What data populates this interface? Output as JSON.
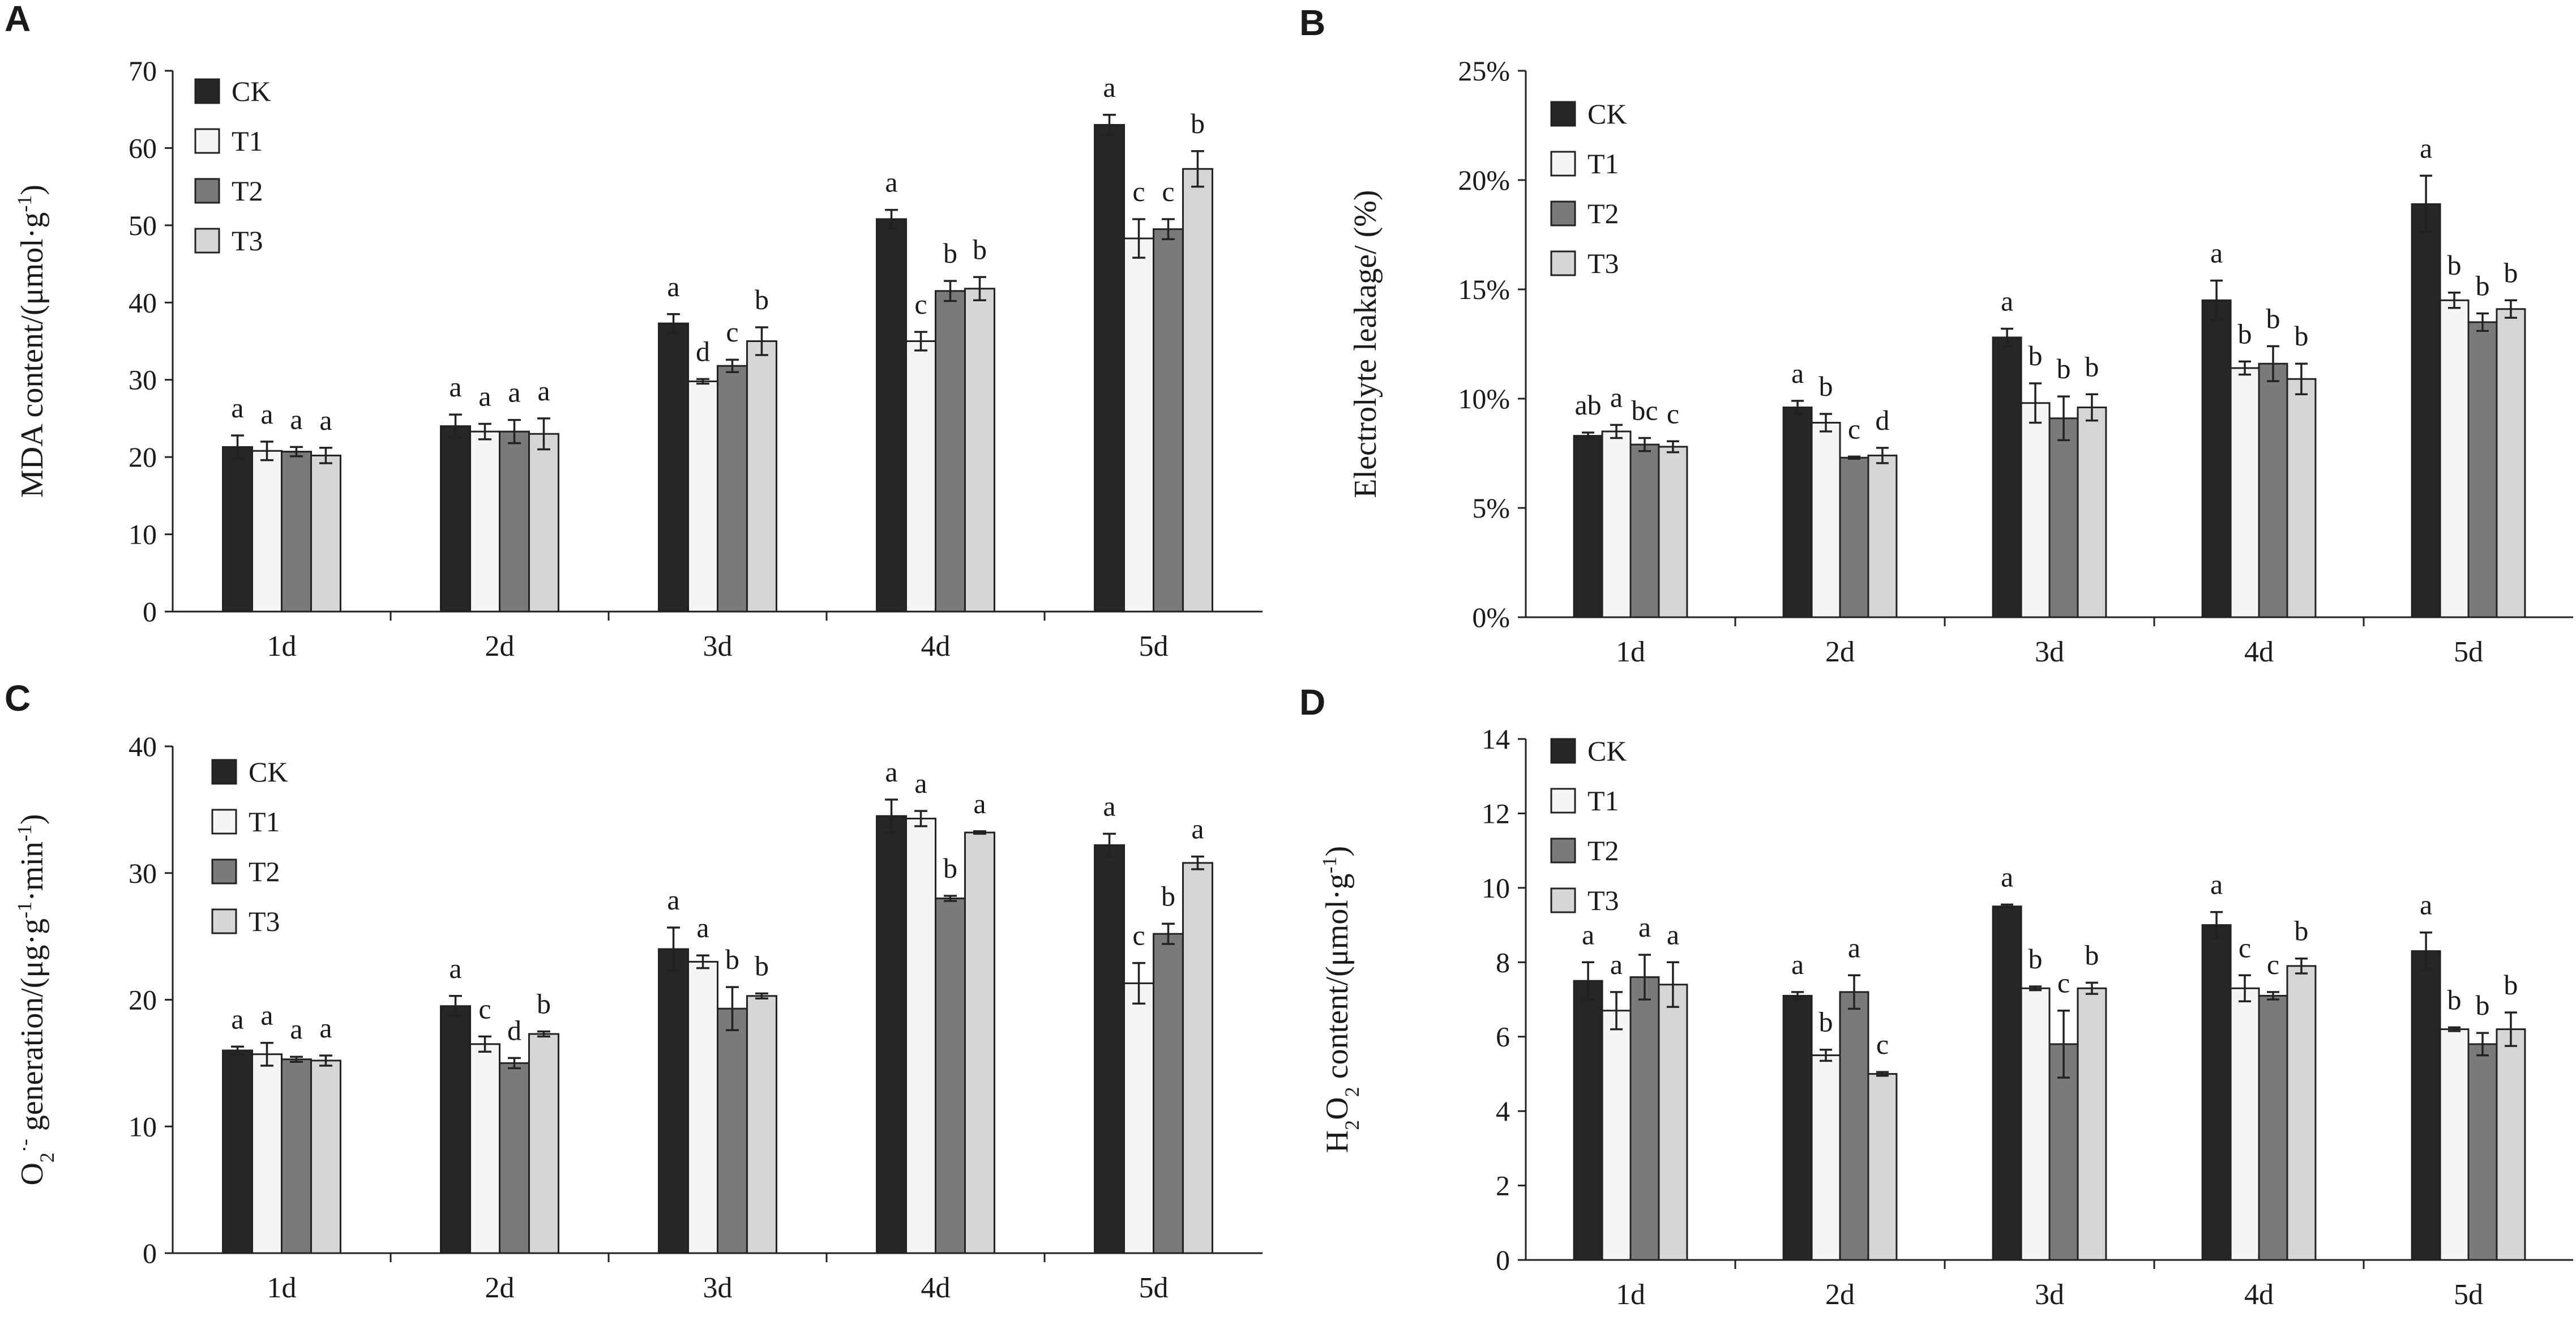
{
  "figure": {
    "series_names": [
      "CK",
      "T1",
      "T2",
      "T3"
    ],
    "series_colors": [
      "#262626",
      "#f5f5f5",
      "#7a7a7a",
      "#d6d6d6"
    ]
  },
  "chart_data": [
    {
      "type": "bar",
      "panel": "A",
      "ylabel": "MDA content/(μmol·g⁻¹)",
      "ylabel_parts": [
        [
          "MDA content/(μmol·g",
          ""
        ],
        [
          "-1",
          "sup"
        ],
        [
          ")",
          ""
        ]
      ],
      "ylim": [
        0,
        70
      ],
      "yticks": [
        0,
        10,
        20,
        30,
        40,
        50,
        60,
        70
      ],
      "ytick_labels": [
        "0",
        "10",
        "20",
        "30",
        "40",
        "50",
        "60",
        "70"
      ],
      "categories": [
        "1d",
        "2d",
        "3d",
        "4d",
        "5d"
      ],
      "legend": "top-left",
      "series": [
        {
          "name": "CK",
          "values": [
            21.3,
            24.0,
            37.3,
            50.8,
            63.0
          ],
          "errors": [
            1.5,
            1.5,
            1.2,
            1.2,
            1.3
          ],
          "letters": [
            "a",
            "a",
            "a",
            "a",
            "a"
          ]
        },
        {
          "name": "T1",
          "values": [
            20.8,
            23.3,
            29.8,
            35.0,
            48.3
          ],
          "errors": [
            1.2,
            1.0,
            0.3,
            1.2,
            2.5
          ],
          "letters": [
            "a",
            "a",
            "d",
            "c",
            "c"
          ]
        },
        {
          "name": "T2",
          "values": [
            20.7,
            23.3,
            31.8,
            41.5,
            49.5
          ],
          "errors": [
            0.6,
            1.5,
            0.8,
            1.3,
            1.3
          ],
          "letters": [
            "a",
            "a",
            "c",
            "b",
            "c"
          ]
        },
        {
          "name": "T3",
          "values": [
            20.2,
            23.0,
            35.0,
            41.8,
            57.3
          ],
          "errors": [
            1.0,
            2.0,
            1.8,
            1.5,
            2.3
          ],
          "letters": [
            "a",
            "a",
            "b",
            "b",
            "b"
          ]
        }
      ]
    },
    {
      "type": "bar",
      "panel": "B",
      "ylabel": "Electrolyte leakage/ (%)",
      "ylabel_parts": [
        [
          "Electrolyte leakage/ (%)",
          ""
        ]
      ],
      "ylim": [
        0,
        25
      ],
      "yticks": [
        0,
        5,
        10,
        15,
        20,
        25
      ],
      "ytick_labels": [
        "0%",
        "5%",
        "10%",
        "15%",
        "20%",
        "25%"
      ],
      "categories": [
        "1d",
        "2d",
        "3d",
        "4d",
        "5d"
      ],
      "legend": "top-left",
      "series": [
        {
          "name": "CK",
          "values": [
            8.3,
            9.6,
            12.8,
            14.5,
            18.9
          ],
          "errors": [
            0.15,
            0.3,
            0.4,
            0.9,
            1.3
          ],
          "letters": [
            "ab",
            "a",
            "a",
            "a",
            "a"
          ]
        },
        {
          "name": "T1",
          "values": [
            8.5,
            8.9,
            9.8,
            11.4,
            14.5
          ],
          "errors": [
            0.3,
            0.4,
            0.9,
            0.3,
            0.35
          ],
          "letters": [
            "a",
            "b",
            "b",
            "b",
            "b"
          ]
        },
        {
          "name": "T2",
          "values": [
            7.9,
            7.3,
            9.1,
            11.6,
            13.5
          ],
          "errors": [
            0.3,
            0.05,
            1.0,
            0.8,
            0.4
          ],
          "letters": [
            "bc",
            "c",
            "b",
            "b",
            "b"
          ]
        },
        {
          "name": "T3",
          "values": [
            7.8,
            7.4,
            9.6,
            10.9,
            14.1
          ],
          "errors": [
            0.25,
            0.35,
            0.6,
            0.7,
            0.4
          ],
          "letters": [
            "c",
            "d",
            "b",
            "b",
            "b"
          ]
        }
      ]
    },
    {
      "type": "bar",
      "panel": "C",
      "ylabel": "O₂⁻ generation/(μg·g⁻¹·min⁻¹)",
      "ylabel_parts": [
        [
          "O",
          ""
        ],
        [
          "2",
          "sub"
        ],
        [
          "·-",
          "sup"
        ],
        [
          " generation/(μg·g",
          ""
        ],
        [
          "-1",
          "sup"
        ],
        [
          "·min",
          ""
        ],
        [
          "-1",
          "sup"
        ],
        [
          ")",
          ""
        ]
      ],
      "ylim": [
        0,
        40
      ],
      "yticks": [
        0,
        10,
        20,
        30,
        40
      ],
      "ytick_labels": [
        "0",
        "10",
        "20",
        "30",
        "40"
      ],
      "categories": [
        "1d",
        "2d",
        "3d",
        "4d",
        "5d"
      ],
      "legend": "top-left",
      "series": [
        {
          "name": "CK",
          "values": [
            16.0,
            19.5,
            24.0,
            34.5,
            32.2
          ],
          "errors": [
            0.3,
            0.8,
            1.7,
            1.3,
            0.9
          ],
          "letters": [
            "a",
            "a",
            "a",
            "a",
            "a"
          ]
        },
        {
          "name": "T1",
          "values": [
            15.7,
            16.5,
            23.0,
            34.3,
            21.3
          ],
          "errors": [
            0.9,
            0.6,
            0.5,
            0.6,
            1.6
          ],
          "letters": [
            "a",
            "c",
            "a",
            "a",
            "c"
          ]
        },
        {
          "name": "T2",
          "values": [
            15.3,
            15.0,
            19.3,
            28.0,
            25.2
          ],
          "errors": [
            0.2,
            0.4,
            1.7,
            0.2,
            0.8
          ],
          "letters": [
            "a",
            "d",
            "b",
            "b",
            "b"
          ]
        },
        {
          "name": "T3",
          "values": [
            15.2,
            17.3,
            20.3,
            33.2,
            30.8
          ],
          "errors": [
            0.4,
            0.2,
            0.2,
            0.1,
            0.5
          ],
          "letters": [
            "a",
            "b",
            "b",
            "a",
            "a"
          ]
        }
      ]
    },
    {
      "type": "bar",
      "panel": "D",
      "ylabel": "H₂O₂ content/(μmol·g⁻¹)",
      "ylabel_parts": [
        [
          "H",
          ""
        ],
        [
          "2",
          "sub"
        ],
        [
          "O",
          ""
        ],
        [
          "2",
          "sub"
        ],
        [
          " content/(μmol·g",
          ""
        ],
        [
          "-1",
          "sup"
        ],
        [
          ")",
          ""
        ]
      ],
      "ylim": [
        0,
        14
      ],
      "yticks": [
        0,
        2,
        4,
        6,
        8,
        10,
        12,
        14
      ],
      "ytick_labels": [
        "0",
        "2",
        "4",
        "6",
        "8",
        "10",
        "12",
        "14"
      ],
      "categories": [
        "1d",
        "2d",
        "3d",
        "4d",
        "5d"
      ],
      "legend": "top-left",
      "series": [
        {
          "name": "CK",
          "values": [
            7.5,
            7.1,
            9.5,
            9.0,
            8.3
          ],
          "errors": [
            0.5,
            0.1,
            0.05,
            0.35,
            0.5
          ],
          "letters": [
            "a",
            "a",
            "a",
            "a",
            "a"
          ]
        },
        {
          "name": "T1",
          "values": [
            6.7,
            5.5,
            7.3,
            7.3,
            6.2
          ],
          "errors": [
            0.5,
            0.15,
            0.05,
            0.35,
            0.05
          ],
          "letters": [
            "a",
            "b",
            "b",
            "c",
            "b"
          ]
        },
        {
          "name": "T2",
          "values": [
            7.6,
            7.2,
            5.8,
            7.1,
            5.8
          ],
          "errors": [
            0.6,
            0.45,
            0.9,
            0.1,
            0.3
          ],
          "letters": [
            "a",
            "a",
            "c",
            "c",
            "b"
          ]
        },
        {
          "name": "T3",
          "values": [
            7.4,
            5.0,
            7.3,
            7.9,
            6.2
          ],
          "errors": [
            0.6,
            0.05,
            0.15,
            0.2,
            0.45
          ],
          "letters": [
            "a",
            "c",
            "b",
            "b",
            "b"
          ]
        }
      ]
    }
  ]
}
